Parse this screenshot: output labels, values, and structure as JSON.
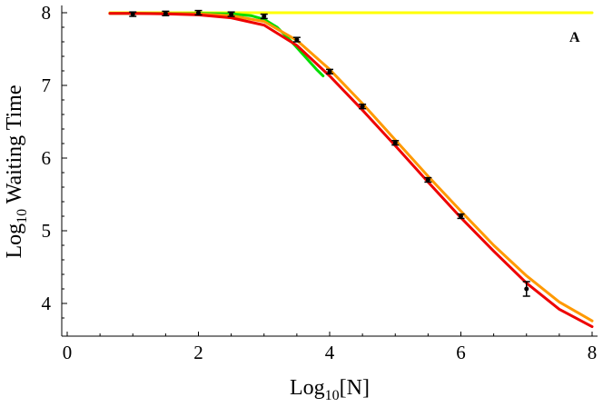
{
  "chart_data": {
    "type": "line",
    "xlabel": {
      "base": "Log",
      "sub": "10",
      "rest": "[N]"
    },
    "ylabel": {
      "base": "Log",
      "sub": "10",
      "rest": " Waiting Time"
    },
    "xlim": [
      0,
      8
    ],
    "ylim": [
      3.6,
      8.05
    ],
    "x_ticks": [
      "0",
      "2",
      "4",
      "6",
      "8"
    ],
    "y_ticks": [
      "4",
      "5",
      "6",
      "7",
      "8"
    ],
    "annotation": "A",
    "grid": false,
    "colors": {
      "yellow": "#ffff00",
      "green": "#00dd00",
      "orange": "#ff9900",
      "red": "#ee0000",
      "points": "#000000"
    },
    "series": [
      {
        "color": "yellow",
        "points": [
          [
            0.65,
            8.0
          ],
          [
            8.0,
            8.0
          ]
        ]
      },
      {
        "color": "green",
        "points": [
          [
            0.65,
            7.99
          ],
          [
            1.0,
            7.99
          ],
          [
            1.5,
            7.99
          ],
          [
            2.0,
            7.99
          ],
          [
            2.5,
            7.985
          ],
          [
            2.8,
            7.96
          ],
          [
            3.0,
            7.91
          ],
          [
            3.2,
            7.8
          ],
          [
            3.4,
            7.62
          ],
          [
            3.6,
            7.42
          ],
          [
            3.8,
            7.22
          ],
          [
            3.9,
            7.13
          ]
        ]
      },
      {
        "color": "orange",
        "points": [
          [
            0.65,
            7.99
          ],
          [
            1.0,
            7.99
          ],
          [
            1.5,
            7.99
          ],
          [
            2.0,
            7.985
          ],
          [
            2.5,
            7.96
          ],
          [
            3.0,
            7.88
          ],
          [
            3.5,
            7.62
          ],
          [
            4.0,
            7.22
          ],
          [
            4.5,
            6.75
          ],
          [
            5.0,
            6.25
          ],
          [
            5.5,
            5.75
          ],
          [
            6.0,
            5.27
          ],
          [
            6.5,
            4.8
          ],
          [
            7.0,
            4.38
          ],
          [
            7.5,
            4.02
          ],
          [
            8.0,
            3.76
          ]
        ]
      },
      {
        "color": "red",
        "points": [
          [
            0.65,
            7.99
          ],
          [
            1.0,
            7.99
          ],
          [
            1.5,
            7.985
          ],
          [
            2.0,
            7.97
          ],
          [
            2.5,
            7.93
          ],
          [
            3.0,
            7.83
          ],
          [
            3.5,
            7.55
          ],
          [
            4.0,
            7.13
          ],
          [
            4.5,
            6.66
          ],
          [
            5.0,
            6.17
          ],
          [
            5.5,
            5.67
          ],
          [
            6.0,
            5.18
          ],
          [
            6.5,
            4.72
          ],
          [
            7.0,
            4.28
          ],
          [
            7.5,
            3.92
          ],
          [
            8.0,
            3.68
          ]
        ]
      }
    ],
    "data_points": [
      {
        "x": 1.0,
        "y": 7.98,
        "err": 0.03
      },
      {
        "x": 1.5,
        "y": 7.99,
        "err": 0.03
      },
      {
        "x": 2.0,
        "y": 8.0,
        "err": 0.03
      },
      {
        "x": 2.5,
        "y": 7.98,
        "err": 0.03
      },
      {
        "x": 3.0,
        "y": 7.95,
        "err": 0.03
      },
      {
        "x": 3.5,
        "y": 7.63,
        "err": 0.03
      },
      {
        "x": 4.0,
        "y": 7.19,
        "err": 0.03
      },
      {
        "x": 4.5,
        "y": 6.71,
        "err": 0.03
      },
      {
        "x": 5.0,
        "y": 6.21,
        "err": 0.03
      },
      {
        "x": 5.5,
        "y": 5.7,
        "err": 0.03
      },
      {
        "x": 6.0,
        "y": 5.2,
        "err": 0.03
      },
      {
        "x": 7.0,
        "y": 4.2,
        "err": 0.1
      }
    ]
  }
}
